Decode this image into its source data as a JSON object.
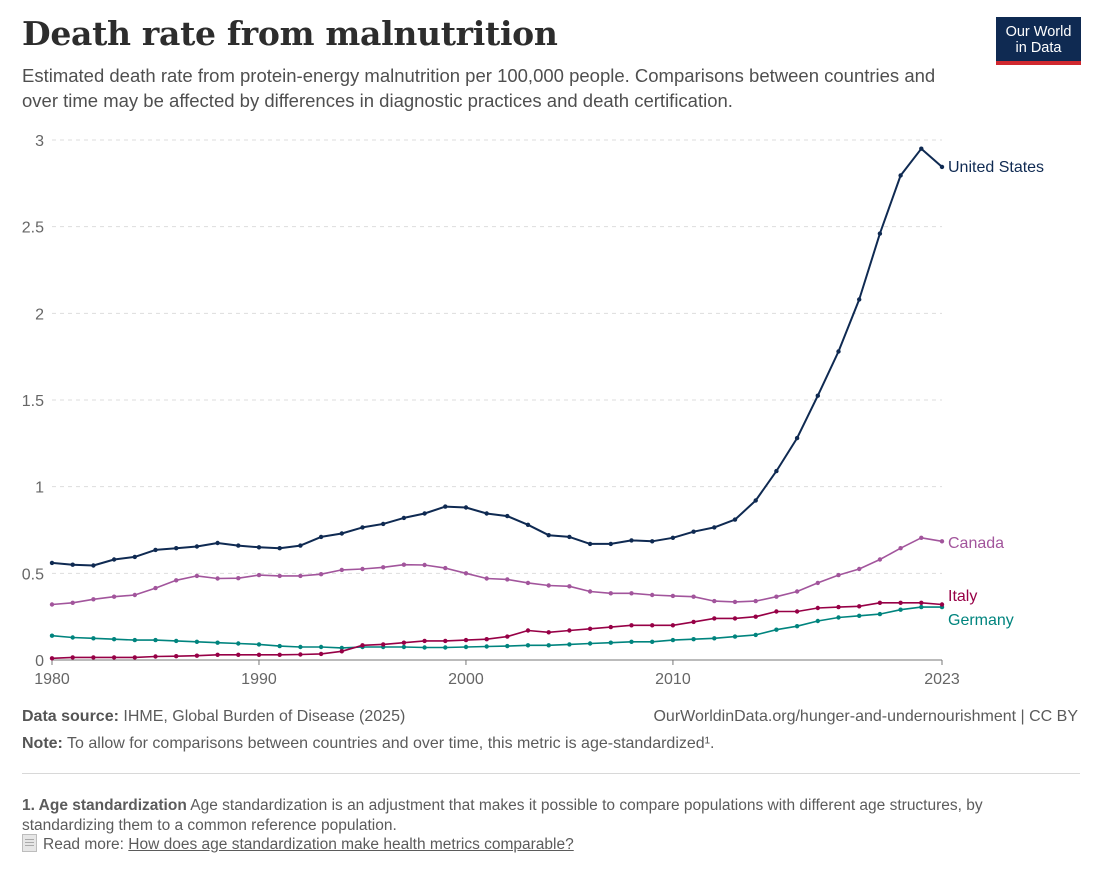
{
  "header": {
    "title": "Death rate from malnutrition",
    "subtitle": "Estimated death rate from protein-energy malnutrition per 100,000 people. Comparisons between countries and over time may be affected by differences in diagnostic practices and death certification.",
    "logo_line1": "Our World",
    "logo_line2": "in Data"
  },
  "colors": {
    "United States": "#0f2a52",
    "Canada": "#a2559c",
    "Italy": "#970046",
    "Germany": "#00847e",
    "grid": "#dddddd",
    "axis": "#777777"
  },
  "chart_data": {
    "type": "line",
    "x": [
      1980,
      1981,
      1982,
      1983,
      1984,
      1985,
      1986,
      1987,
      1988,
      1989,
      1990,
      1991,
      1992,
      1993,
      1994,
      1995,
      1996,
      1997,
      1998,
      1999,
      2000,
      2001,
      2002,
      2003,
      2004,
      2005,
      2006,
      2007,
      2008,
      2009,
      2010,
      2011,
      2012,
      2013,
      2014,
      2015,
      2016,
      2017,
      2018,
      2019,
      2020,
      2021,
      2022,
      2023
    ],
    "xlim": [
      1980,
      2023
    ],
    "ylim": [
      0,
      3
    ],
    "xticks": [
      "1980",
      "1990",
      "2000",
      "2010",
      "2023"
    ],
    "yticks": [
      "0",
      "0.5",
      "1",
      "1.5",
      "2",
      "2.5",
      "3"
    ],
    "grid": "horizontal dashed",
    "series": [
      {
        "name": "United States",
        "values": [
          0.56,
          0.55,
          0.545,
          0.58,
          0.595,
          0.635,
          0.645,
          0.655,
          0.675,
          0.66,
          0.65,
          0.645,
          0.66,
          0.71,
          0.73,
          0.765,
          0.785,
          0.82,
          0.845,
          0.885,
          0.88,
          0.845,
          0.83,
          0.78,
          0.72,
          0.71,
          0.67,
          0.67,
          0.69,
          0.685,
          0.705,
          0.74,
          0.765,
          0.81,
          0.92,
          1.09,
          1.28,
          1.525,
          1.78,
          2.08,
          2.46,
          2.795,
          2.95,
          2.845
        ]
      },
      {
        "name": "Canada",
        "values": [
          0.32,
          0.33,
          0.35,
          0.365,
          0.375,
          0.415,
          0.46,
          0.485,
          0.47,
          0.472,
          0.49,
          0.485,
          0.485,
          0.495,
          0.52,
          0.525,
          0.535,
          0.55,
          0.548,
          0.53,
          0.5,
          0.47,
          0.465,
          0.445,
          0.43,
          0.425,
          0.395,
          0.385,
          0.385,
          0.375,
          0.37,
          0.365,
          0.34,
          0.335,
          0.34,
          0.365,
          0.395,
          0.445,
          0.49,
          0.525,
          0.58,
          0.645,
          0.705,
          0.685
        ]
      },
      {
        "name": "Italy",
        "values": [
          0.01,
          0.015,
          0.015,
          0.015,
          0.015,
          0.02,
          0.022,
          0.025,
          0.03,
          0.03,
          0.03,
          0.03,
          0.032,
          0.035,
          0.05,
          0.085,
          0.09,
          0.1,
          0.11,
          0.11,
          0.115,
          0.12,
          0.135,
          0.17,
          0.16,
          0.17,
          0.18,
          0.19,
          0.2,
          0.2,
          0.2,
          0.22,
          0.24,
          0.24,
          0.25,
          0.28,
          0.28,
          0.3,
          0.305,
          0.31,
          0.33,
          0.33,
          0.33,
          0.32
        ]
      },
      {
        "name": "Germany",
        "values": [
          0.14,
          0.13,
          0.125,
          0.12,
          0.115,
          0.115,
          0.11,
          0.105,
          0.1,
          0.095,
          0.09,
          0.08,
          0.075,
          0.075,
          0.07,
          0.075,
          0.075,
          0.075,
          0.072,
          0.072,
          0.075,
          0.078,
          0.08,
          0.085,
          0.085,
          0.09,
          0.095,
          0.1,
          0.105,
          0.105,
          0.115,
          0.12,
          0.125,
          0.135,
          0.145,
          0.175,
          0.195,
          0.225,
          0.245,
          0.255,
          0.265,
          0.29,
          0.305,
          0.305
        ]
      }
    ]
  },
  "footer": {
    "source_label": "Data source:",
    "source_text": "IHME, Global Burden of Disease (2025)",
    "url": "OurWorldinData.org/hunger-and-undernourishment | CC BY",
    "note_label": "Note:",
    "note_text": "To allow for comparisons between countries and over time, this metric is  age-standardized¹.",
    "footnote_label": "1. Age standardization",
    "footnote_text": "Age standardization is an adjustment that makes it possible to compare populations with different age structures, by standardizing them to a common reference population.",
    "readmore_label": "Read more:",
    "readmore_link": "How does age standardization make health metrics comparable?"
  }
}
